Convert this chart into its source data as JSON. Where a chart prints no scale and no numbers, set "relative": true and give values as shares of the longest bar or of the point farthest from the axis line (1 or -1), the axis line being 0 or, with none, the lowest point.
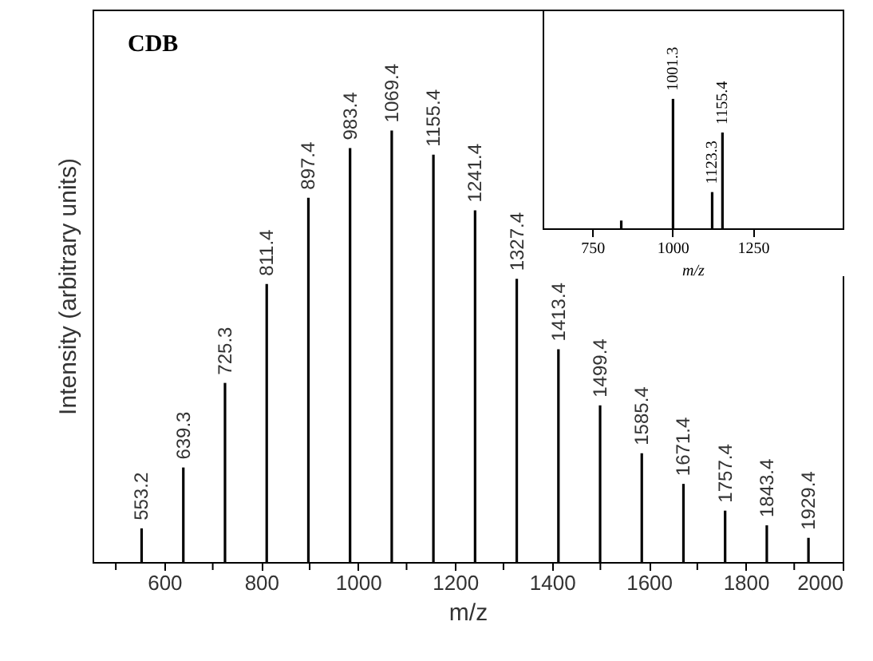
{
  "chart_data": [
    {
      "type": "bar",
      "relative": true,
      "color": "#000000",
      "xlabel": "m/z",
      "ylabel": "Intensity (arbitrary units)",
      "annotations": [
        "CDB",
        {
          "text": "553.2",
          "x": 553.2,
          "y": 0.078
        },
        {
          "text": "639.3",
          "x": 639.3,
          "y": 0.219
        },
        {
          "text": "725.3",
          "x": 725.3,
          "y": 0.415
        },
        {
          "text": "811.4",
          "x": 811.4,
          "y": 0.644
        },
        {
          "text": "897.4",
          "x": 897.4,
          "y": 0.844
        },
        {
          "text": "983.4",
          "x": 983.4,
          "y": 0.959
        },
        {
          "text": "1069.4",
          "x": 1069.4,
          "y": 1
        },
        {
          "text": "1155.4",
          "x": 1155.4,
          "y": 0.944
        },
        {
          "text": "1241.4",
          "x": 1241.4,
          "y": 0.815
        },
        {
          "text": "1327.4",
          "x": 1327.4,
          "y": 0.656
        },
        {
          "text": "1413.4",
          "x": 1413.4,
          "y": 0.493
        },
        {
          "text": "1499.4",
          "x": 1499.4,
          "y": 0.363
        },
        {
          "text": "1585.4",
          "x": 1585.4,
          "y": 0.252
        },
        {
          "text": "1671.4",
          "x": 1671.4,
          "y": 0.181
        },
        {
          "text": "1757.4",
          "x": 1757.4,
          "y": 0.119
        },
        {
          "text": "1843.4",
          "x": 1843.4,
          "y": 0.085
        },
        {
          "text": "1929.4",
          "x": 1929.4,
          "y": 0.056
        }
      ],
      "x": [
        553.2,
        639.3,
        725.3,
        811.4,
        897.4,
        983.4,
        1069.4,
        1155.4,
        1241.4,
        1327.4,
        1413.4,
        1499.4,
        1585.4,
        1671.4,
        1757.4,
        1843.4,
        1929.4
      ],
      "values": [
        0.078,
        0.219,
        0.415,
        0.644,
        0.844,
        0.959,
        1,
        0.944,
        0.815,
        0.656,
        0.493,
        0.363,
        0.252,
        0.181,
        0.119,
        0.085,
        0.056
      ],
      "xlim": [
        452,
        2000
      ],
      "xticks": [
        {
          "value": 500,
          "label": null
        },
        600,
        {
          "value": 700,
          "label": null
        },
        800,
        {
          "value": 900,
          "label": null
        },
        1000,
        {
          "value": 1100,
          "label": null
        },
        1200,
        {
          "value": 1300,
          "label": null
        },
        1400,
        {
          "value": 1500,
          "label": null
        },
        1600,
        {
          "value": 1700,
          "label": null
        },
        1800,
        {
          "value": 1900,
          "label": null
        },
        2000
      ]
    },
    {
      "type": "bar",
      "relative": true,
      "color": "#000000",
      "xlabel": "m/z",
      "x": [
        840,
        1001.3,
        1123.3,
        1155.4
      ],
      "values": [
        0.06,
        1,
        0.28,
        0.74
      ],
      "annotations": [
        {
          "text": "1001.3",
          "x": 1001.3,
          "y": 1
        },
        {
          "text": "1123.3",
          "x": 1123.3,
          "y": 0.28
        },
        {
          "text": "1155.4",
          "x": 1155.4,
          "y": 0.74
        }
      ],
      "xlim": [
        595,
        1530
      ],
      "xticks": [
        750,
        1000,
        1250
      ]
    }
  ]
}
